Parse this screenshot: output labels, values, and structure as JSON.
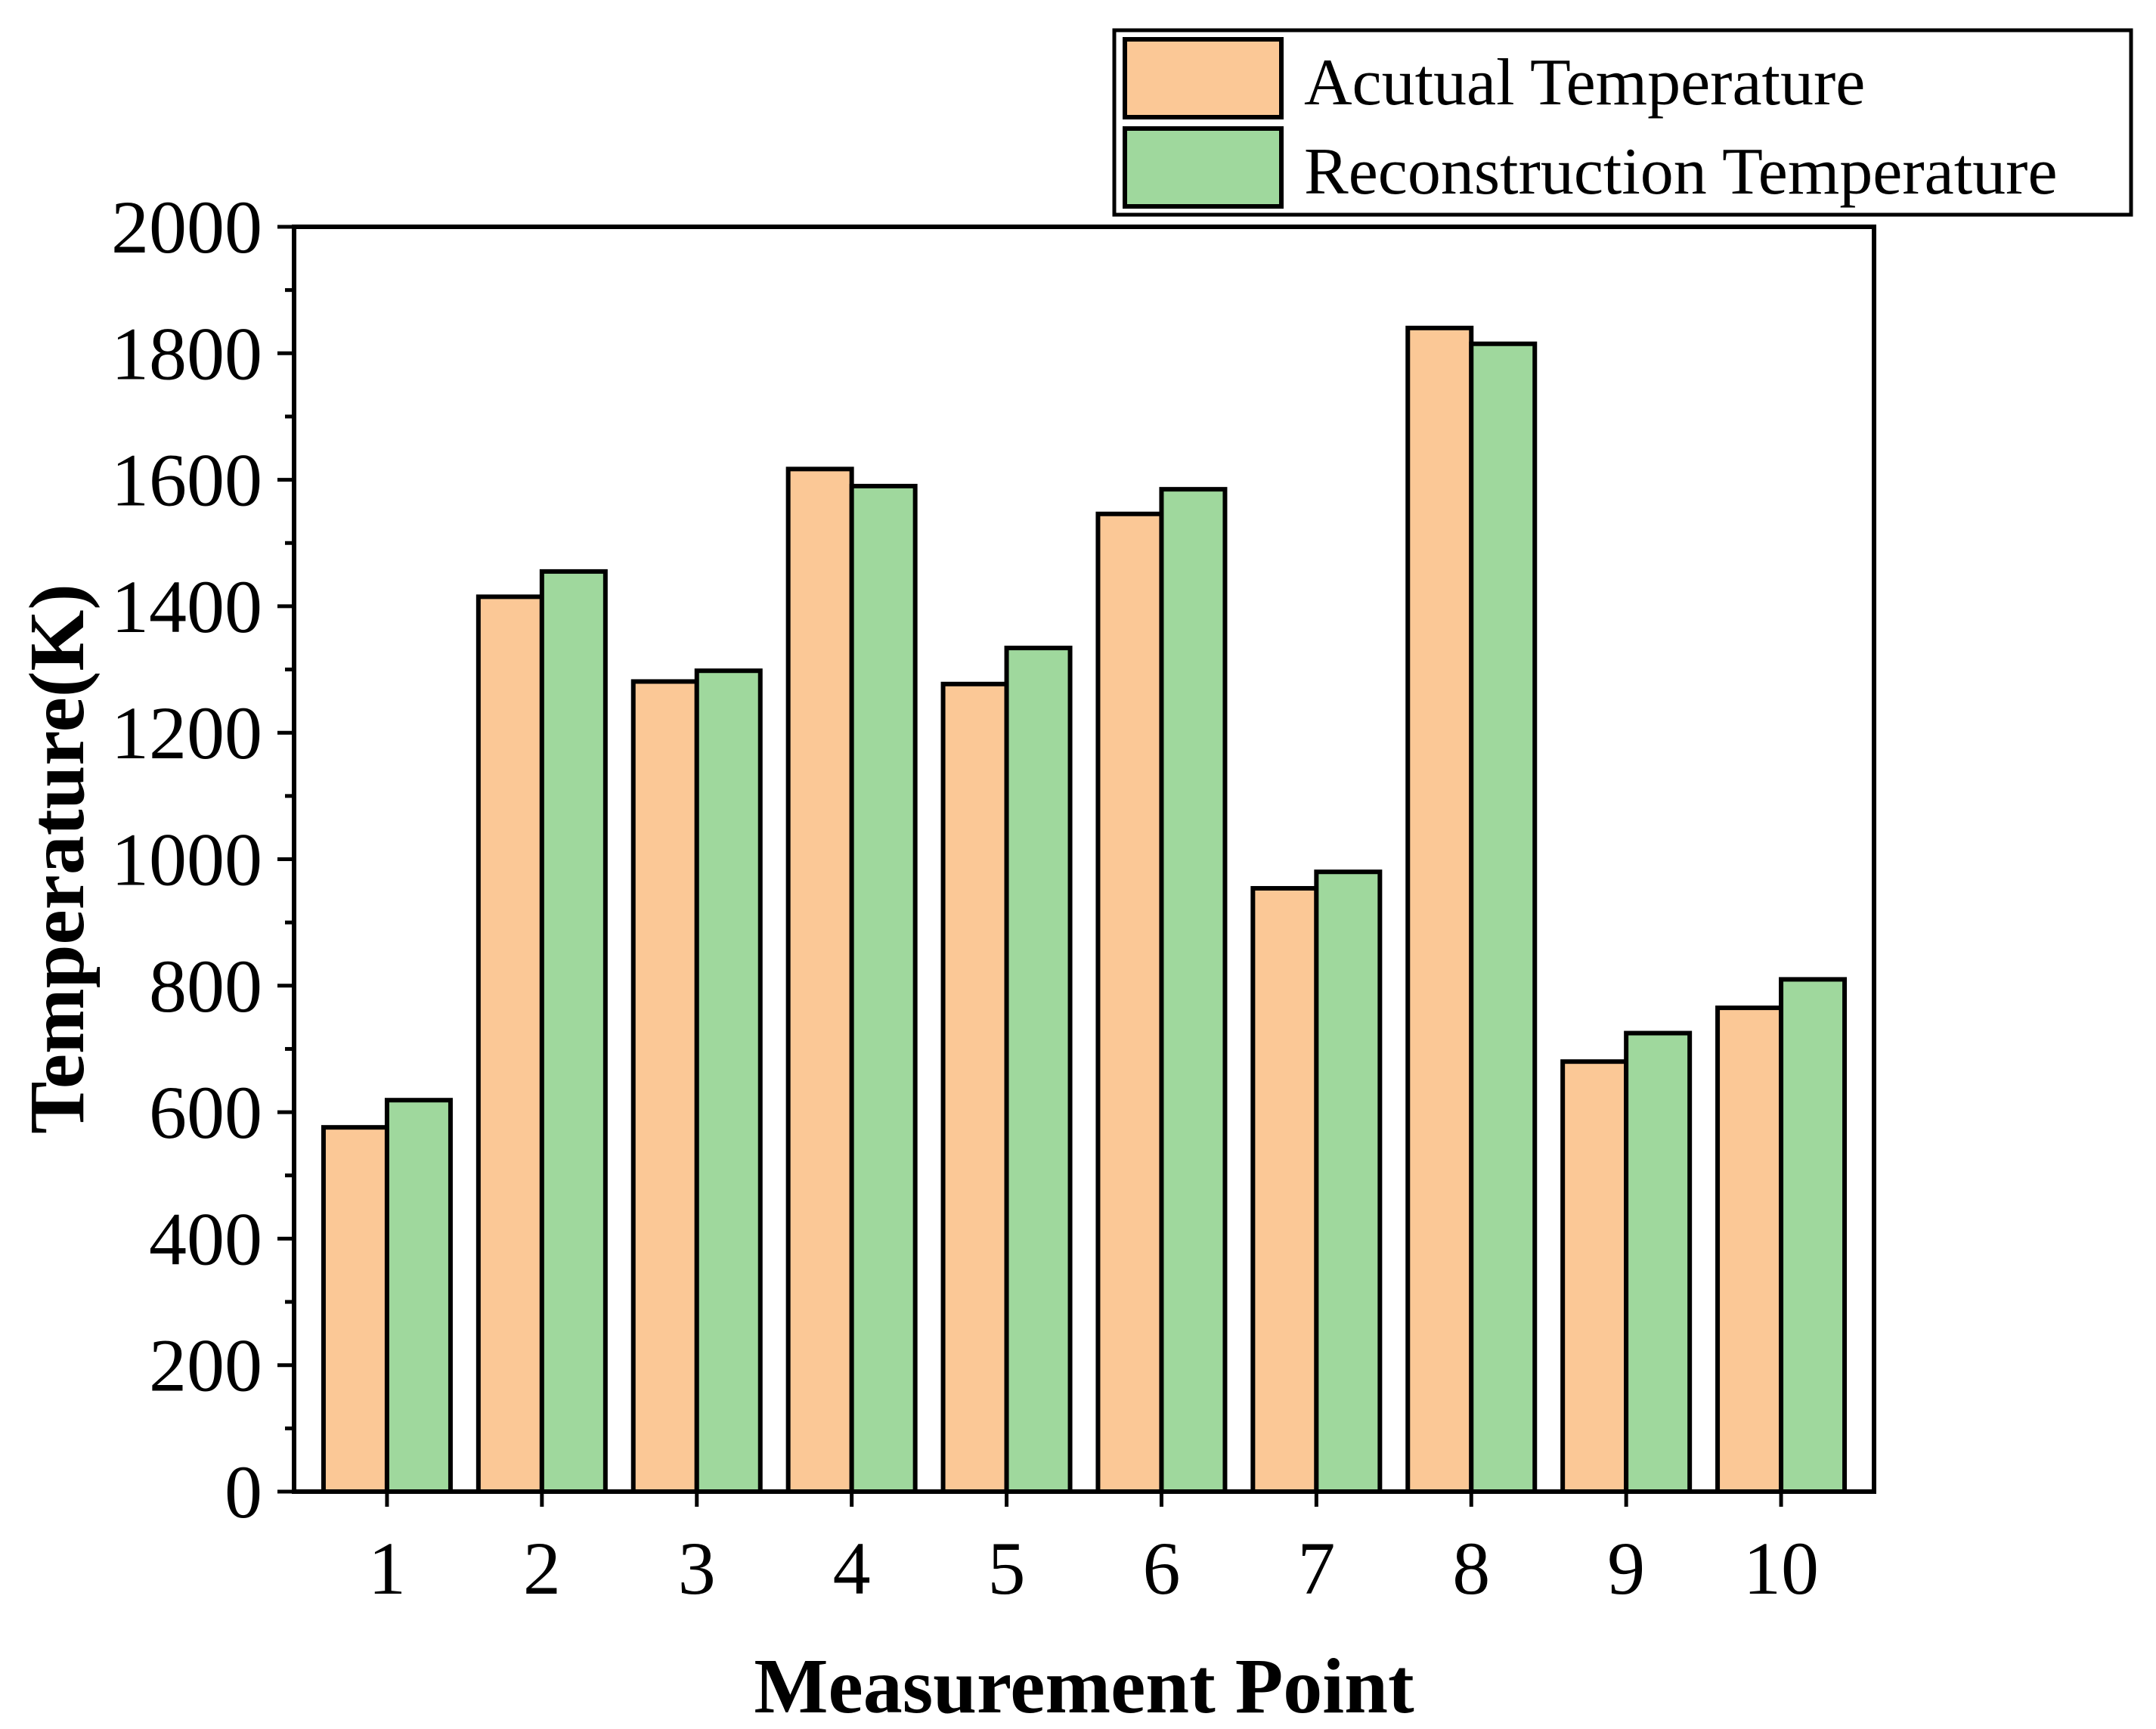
{
  "chart_data": {
    "type": "bar",
    "title": "",
    "xlabel": "Measurement Point",
    "ylabel": "Temperature(K)",
    "categories": [
      "1",
      "2",
      "3",
      "4",
      "5",
      "6",
      "7",
      "8",
      "9",
      "10"
    ],
    "ylim": [
      0,
      2000
    ],
    "yticks": [
      "0",
      "200",
      "400",
      "600",
      "800",
      "1000",
      "1200",
      "1400",
      "1600",
      "1800",
      "2000"
    ],
    "grid": false,
    "legend_position": "top-right",
    "series": [
      {
        "name": "Acutual Temperature",
        "color": "#fbc896",
        "values": [
          576,
          1415,
          1281,
          1617,
          1277,
          1546,
          954,
          1840,
          680,
          765
        ]
      },
      {
        "name": "Reconstruction Temperature",
        "color": "#9fd89d",
        "values": [
          619,
          1455,
          1298,
          1590,
          1334,
          1585,
          980,
          1815,
          725,
          810
        ]
      }
    ]
  }
}
